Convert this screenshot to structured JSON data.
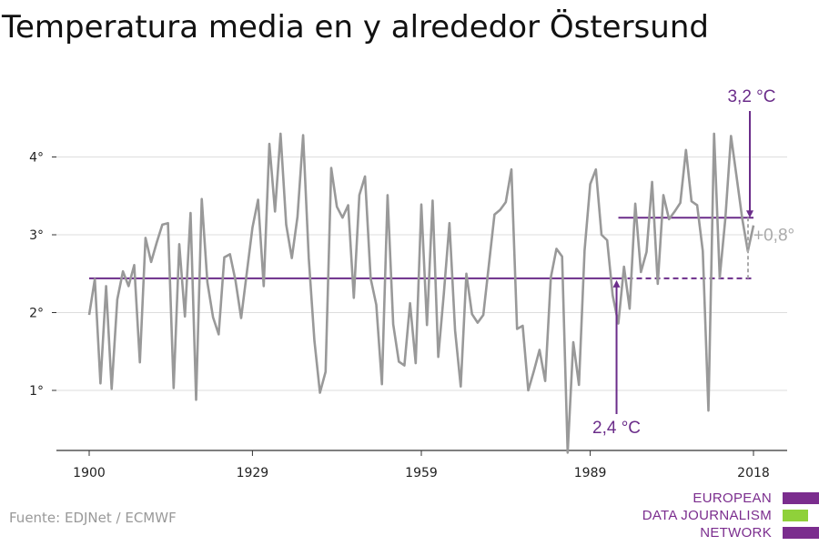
{
  "title": "Temperatura media en y alrededor Östersund",
  "source": "Fuente: EDJNet / ECMWF",
  "logo": {
    "lines": [
      "EUROPEAN",
      "DATA JOURNALISM",
      "NETWORK"
    ],
    "colors": [
      "#7b2d8e",
      "#8fd13a",
      "#7b2d8e"
    ]
  },
  "colors": {
    "series": "#999999",
    "accent": "#6b2d8a",
    "grid": "#dddddd",
    "axis": "#333333"
  },
  "chart_data": {
    "type": "line",
    "title": "Temperatura media en y alrededor Östersund",
    "xlabel": "",
    "ylabel": "",
    "xlim": [
      1900,
      2018
    ],
    "ylim": [
      0.2,
      4.6
    ],
    "x_ticks": [
      1900,
      1929,
      1959,
      1989,
      2018
    ],
    "x_tick_labels": [
      "1900",
      "1929",
      "1959",
      "1989",
      "2018"
    ],
    "y_ticks": [
      1,
      2,
      3,
      4
    ],
    "y_tick_labels": [
      "1°",
      "2°",
      "3°",
      "4°"
    ],
    "grid": "horizontal",
    "series": [
      {
        "x": [
          1900,
          1901,
          1902,
          1903,
          1904,
          1905,
          1906,
          1907,
          1908,
          1909,
          1910,
          1911,
          1912,
          1913,
          1914,
          1915,
          1916,
          1917,
          1918,
          1919,
          1920,
          1921,
          1922,
          1923,
          1924,
          1925,
          1926,
          1927,
          1928,
          1929,
          1930,
          1931,
          1932,
          1933,
          1934,
          1935,
          1936,
          1937,
          1938,
          1939,
          1940,
          1941,
          1942,
          1943,
          1944,
          1945,
          1946,
          1947,
          1948,
          1949,
          1950,
          1951,
          1952,
          1953,
          1954,
          1955,
          1956,
          1957,
          1958,
          1959,
          1960,
          1961,
          1962,
          1963,
          1964,
          1965,
          1966,
          1967,
          1968,
          1969,
          1970,
          1971,
          1972,
          1973,
          1974,
          1975,
          1976,
          1977,
          1978,
          1979,
          1980,
          1981,
          1982,
          1983,
          1984,
          1985,
          1986,
          1987,
          1988,
          1989,
          1990,
          1991,
          1992,
          1993,
          1994,
          1995,
          1996,
          1997,
          1998,
          1999,
          2000,
          2001,
          2002,
          2003,
          2004,
          2005,
          2006,
          2007,
          2008,
          2009,
          2010,
          2011,
          2012,
          2013,
          2014,
          2015,
          2016,
          2017,
          2018
        ],
        "values": [
          1.97,
          2.43,
          1.09,
          2.34,
          1.02,
          2.17,
          2.53,
          2.34,
          2.61,
          1.36,
          2.96,
          2.65,
          2.9,
          3.13,
          3.15,
          1.03,
          2.88,
          1.95,
          3.28,
          0.88,
          3.46,
          2.39,
          1.94,
          1.72,
          2.71,
          2.75,
          2.41,
          1.93,
          2.51,
          3.09,
          3.45,
          2.34,
          4.17,
          3.3,
          4.3,
          3.13,
          2.7,
          3.23,
          4.28,
          2.7,
          1.64,
          0.97,
          1.24,
          3.86,
          3.36,
          3.22,
          3.38,
          2.19,
          3.51,
          3.75,
          2.44,
          2.1,
          1.08,
          3.51,
          1.85,
          1.37,
          1.32,
          2.12,
          1.35,
          3.39,
          1.84,
          3.44,
          1.43,
          2.24,
          3.15,
          1.77,
          1.05,
          2.5,
          1.98,
          1.87,
          1.97,
          2.61,
          3.26,
          3.32,
          3.42,
          3.84,
          1.79,
          1.83,
          1.0,
          1.25,
          1.52,
          1.12,
          2.45,
          2.82,
          2.72,
          0.2,
          1.62,
          1.07,
          2.8,
          3.65,
          3.84,
          3.0,
          2.93,
          2.22,
          1.86,
          2.59,
          2.05,
          3.4,
          2.52,
          2.78,
          3.68,
          2.37,
          3.51,
          3.2,
          3.3,
          3.41,
          4.09,
          3.43,
          3.38,
          2.79,
          0.74,
          4.3,
          2.45,
          3.21,
          4.27,
          3.75,
          3.21,
          2.79,
          3.12
        ]
      }
    ],
    "reference_lines": [
      {
        "from": 1900,
        "to": 2018,
        "value": 2.44,
        "label": "2,4 °C"
      },
      {
        "from": 1994,
        "to": 2018,
        "value": 3.22,
        "label": "3,2 °C"
      }
    ],
    "difference_label": "+0,8°"
  }
}
